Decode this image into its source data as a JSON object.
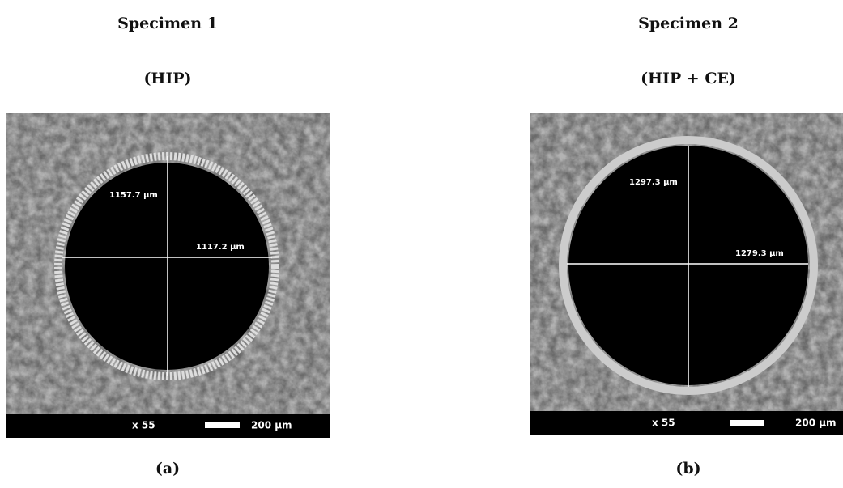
{
  "panels": [
    {
      "title": "Specimen 1",
      "subtitle": "(HIP)",
      "measurements": [
        "1157.7 µm",
        "1117.2 µm"
      ],
      "magnification": "x 55",
      "scale_bar": "200 µm",
      "caption": "(a)"
    },
    {
      "title": "Specimen 2",
      "subtitle": "(HIP + CE)",
      "measurements": [
        "1297.3 µm",
        "1279.3 µm"
      ],
      "magnification": "x 55",
      "scale_bar": "200 µm",
      "caption": "(b)"
    }
  ]
}
